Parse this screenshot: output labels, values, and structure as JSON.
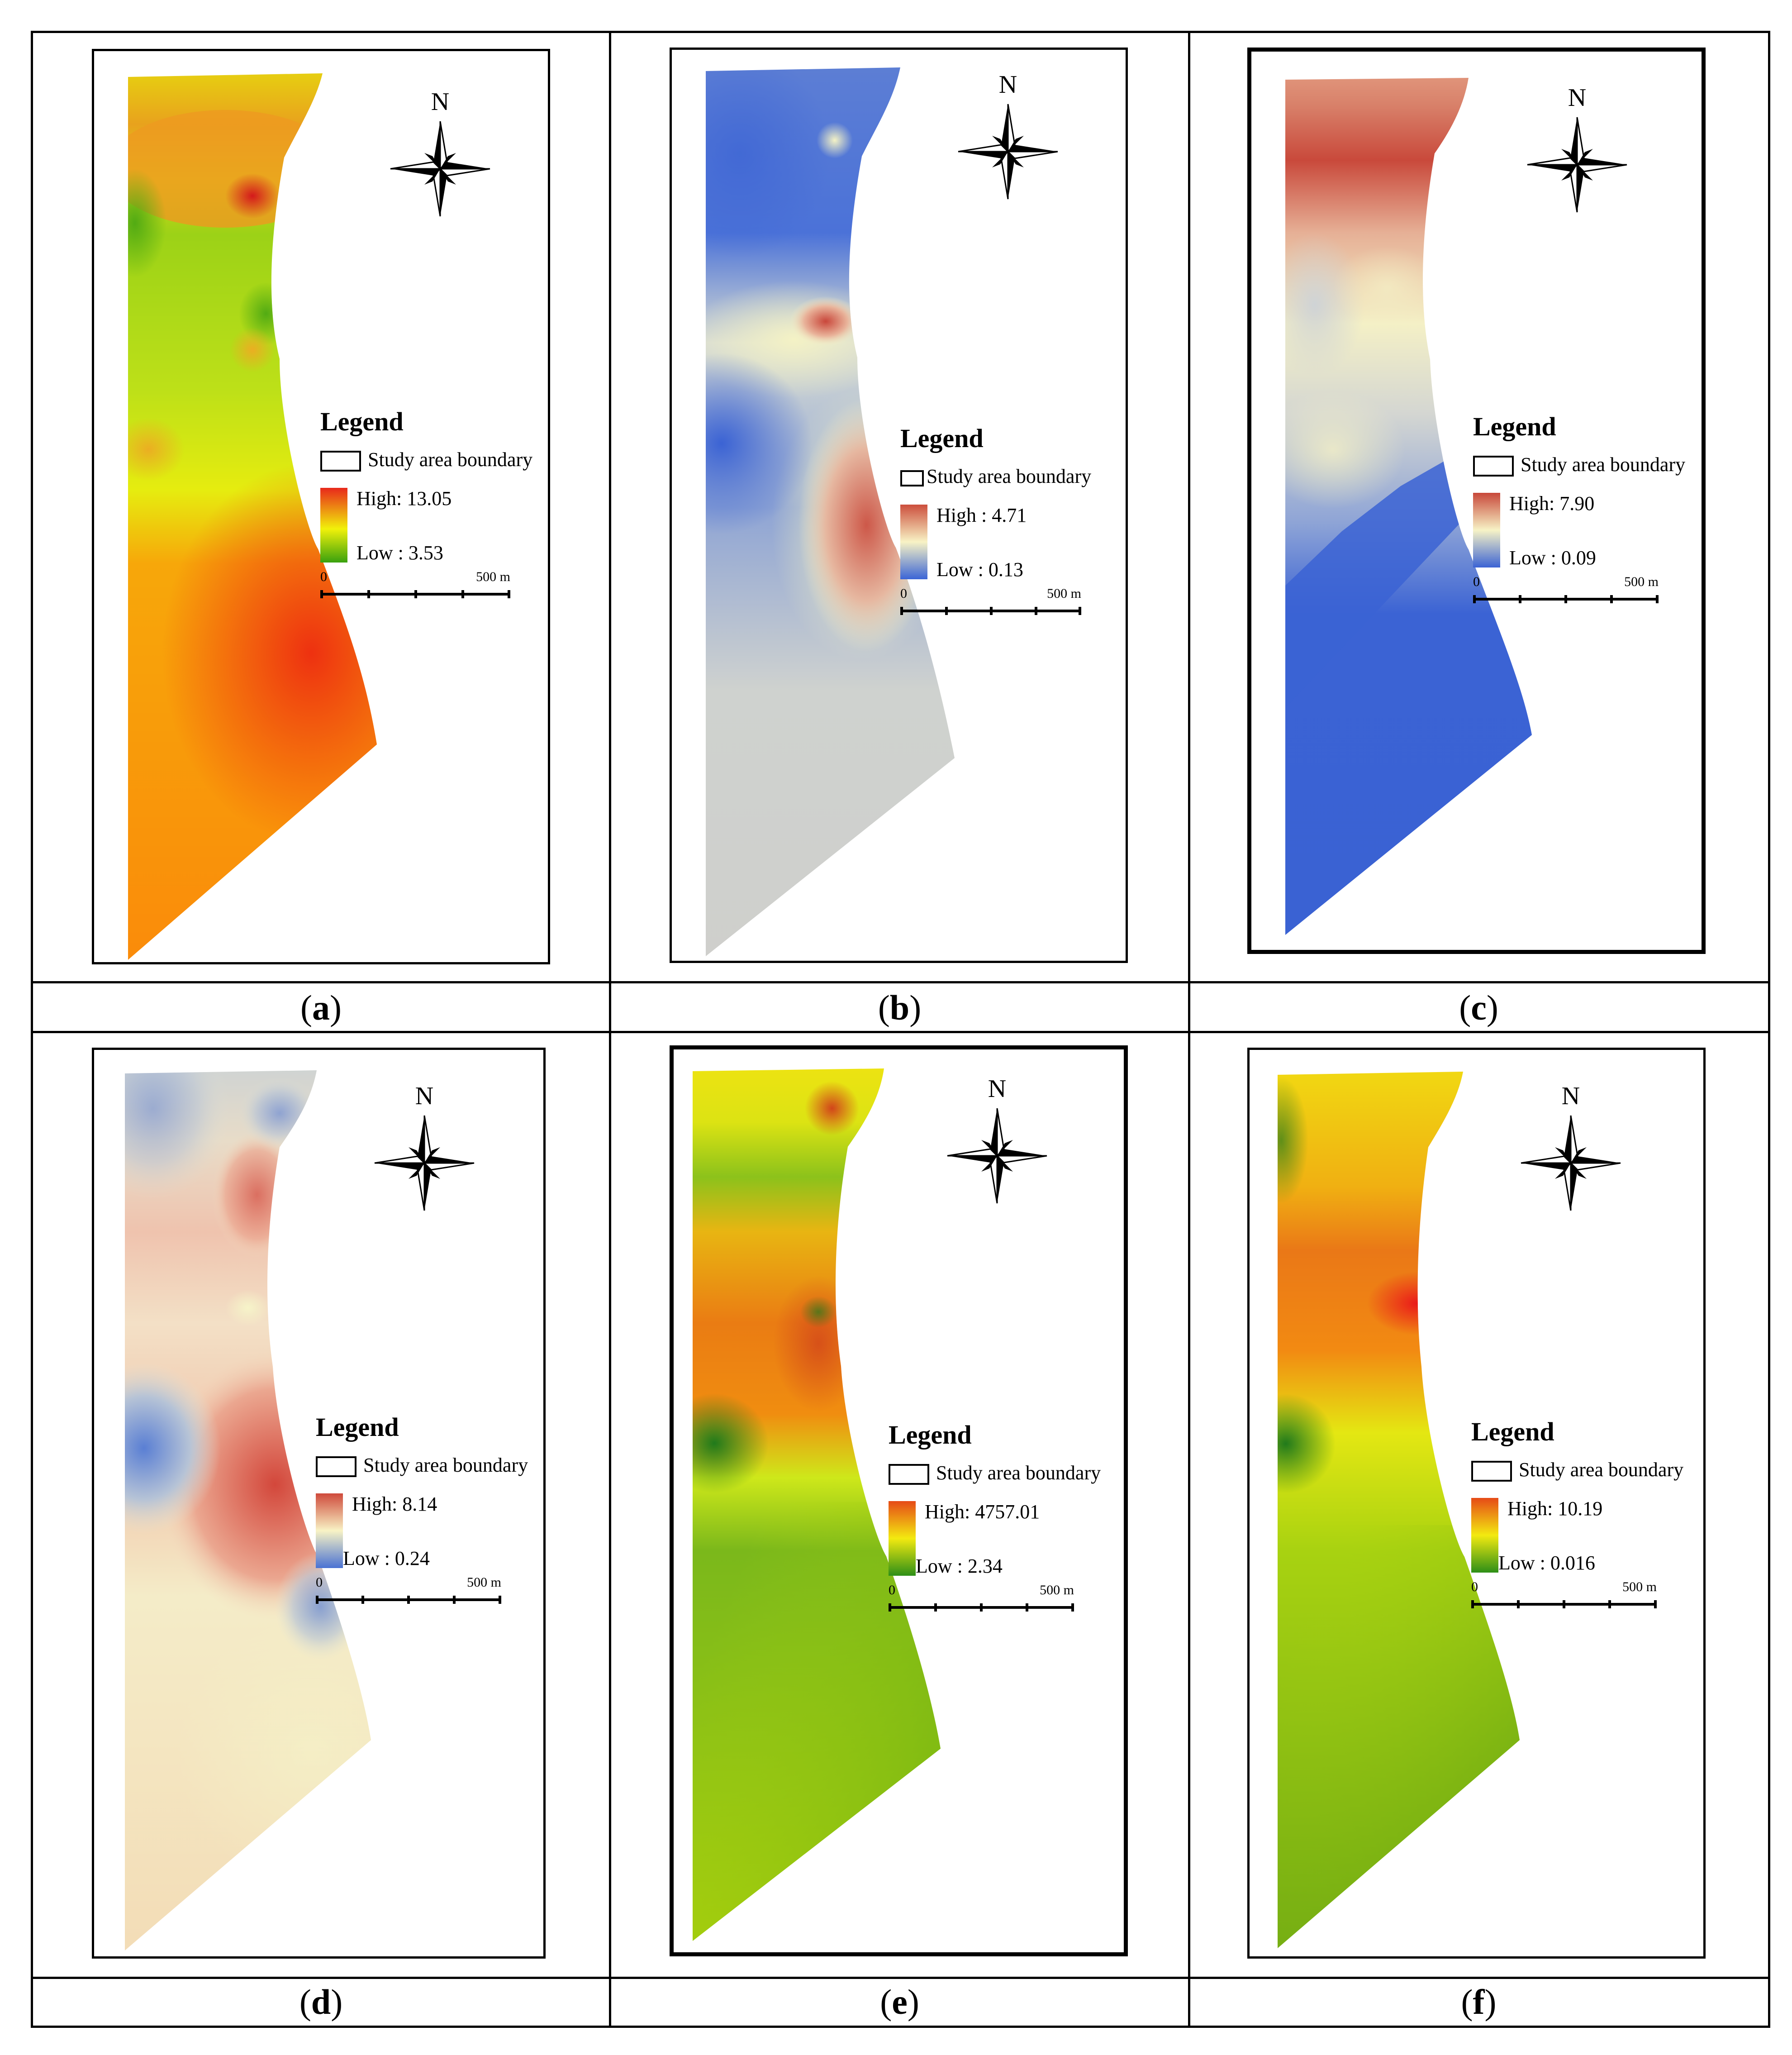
{
  "figure": {
    "panels": [
      {
        "id": "a",
        "caption_letter": "a",
        "legend_title": "Legend",
        "boundary_label": "Study area boundary",
        "high_label": "High: 13.05",
        "low_label": "Low : 3.53",
        "north_label": "N",
        "scale_start": "0",
        "scale_end": "500 m",
        "ramp_top": "#e8281b",
        "ramp_mid": "#f1f10a",
        "ramp_bottom": "#39a10e"
      },
      {
        "id": "b",
        "caption_letter": "b",
        "legend_title": "Legend",
        "boundary_label": "Study area boundary",
        "high_label": "High : 4.71",
        "low_label": "Low : 0.13",
        "north_label": "N",
        "scale_start": "0",
        "scale_end": "500 m",
        "ramp_top": "#cc4e3c",
        "ramp_mid": "#f8f3c5",
        "ramp_bottom": "#3b65d6"
      },
      {
        "id": "c",
        "caption_letter": "c",
        "legend_title": "Legend",
        "boundary_label": "Study area boundary",
        "high_label": "High: 7.90",
        "low_label": "Low : 0.09",
        "north_label": "N",
        "scale_start": "0",
        "scale_end": "500 m",
        "ramp_top": "#c8483a",
        "ramp_mid": "#f7f3c6",
        "ramp_bottom": "#3b63d4"
      },
      {
        "id": "d",
        "caption_letter": "d",
        "legend_title": "Legend",
        "boundary_label": "Study area boundary",
        "high_label": "High: 8.14",
        "low_label": "Low : 0.24",
        "north_label": "N",
        "scale_start": "0",
        "scale_end": "500 m",
        "ramp_top": "#cf4a3b",
        "ramp_mid": "#f8f3c5",
        "ramp_bottom": "#4a72d3"
      },
      {
        "id": "e",
        "caption_letter": "e",
        "legend_title": "Legend",
        "boundary_label": "Study area boundary",
        "high_label": "High: 4757.01",
        "low_label": "Low : 2.34",
        "north_label": "N",
        "scale_start": "0",
        "scale_end": "500 m",
        "ramp_top": "#e64a17",
        "ramp_mid": "#f3ea10",
        "ramp_bottom": "#2d8f17"
      },
      {
        "id": "f",
        "caption_letter": "f",
        "legend_title": "Legend",
        "boundary_label": "Study area boundary",
        "high_label": "High: 10.19",
        "low_label": "Low : 0.016",
        "north_label": "N",
        "scale_start": "0",
        "scale_end": "500 m",
        "ramp_top": "#e64a17",
        "ramp_mid": "#f3ea10",
        "ramp_bottom": "#2d8f17"
      }
    ]
  }
}
